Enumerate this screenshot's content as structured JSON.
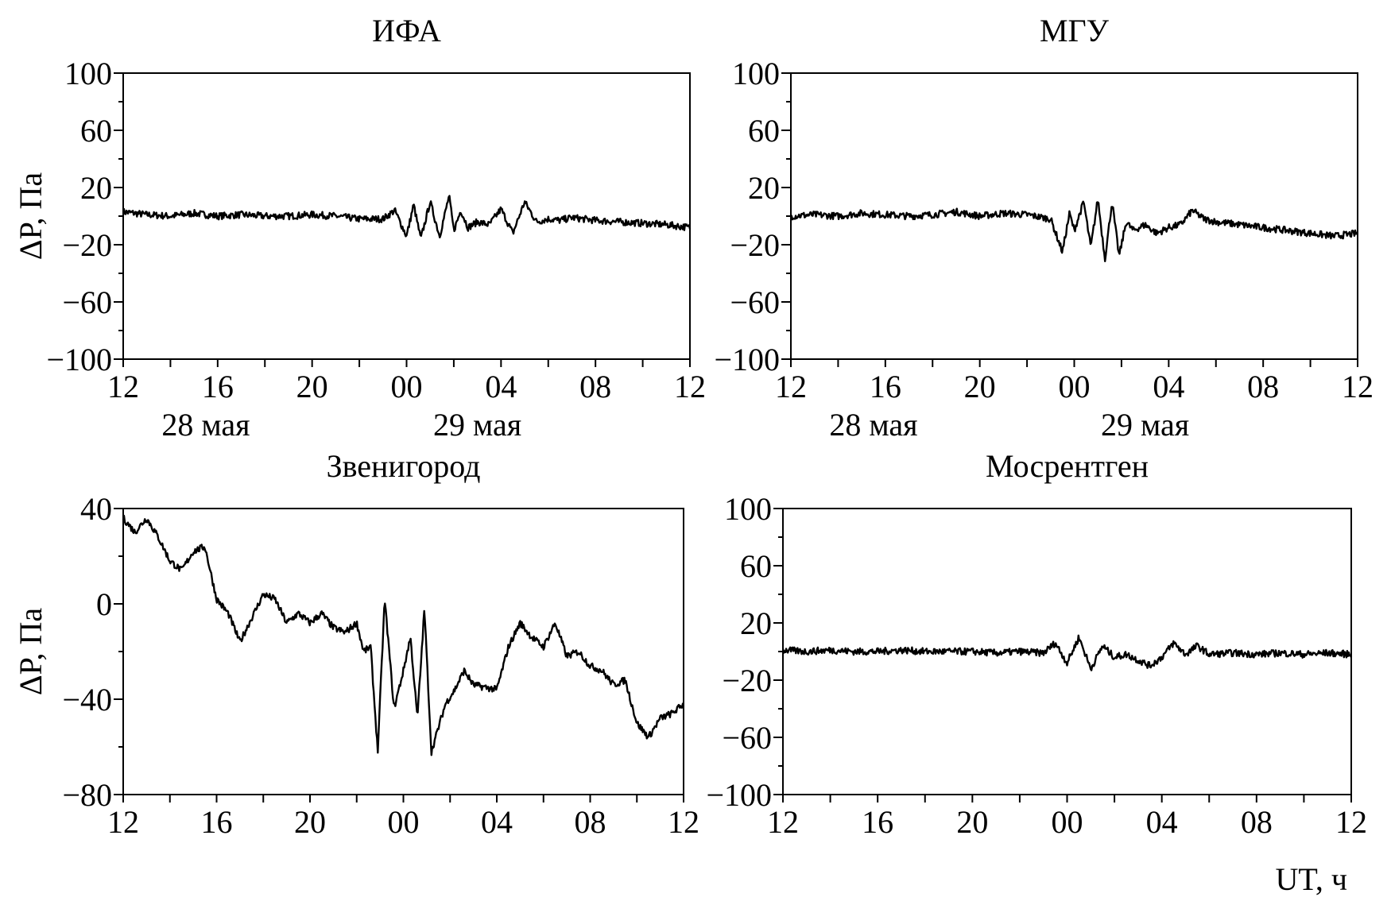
{
  "chart_data": [
    {
      "type": "line",
      "title": "ИФА",
      "ylabel": "ΔP, Па",
      "ylim": [
        -100,
        100
      ],
      "yticks": [
        "100",
        "60",
        "20",
        "−20",
        "−60",
        "−100"
      ],
      "xticks": [
        "12",
        "16",
        "20",
        "00",
        "04",
        "08",
        "12"
      ],
      "date_labels": [
        {
          "text": "28 мая",
          "at_hour": 15.5
        },
        {
          "text": "29 мая",
          "at_hour": 27
        }
      ],
      "xlim_hours": [
        0,
        24
      ],
      "series": [
        {
          "x": [
            0,
            1,
            2,
            3,
            4,
            5,
            6,
            7,
            8,
            9,
            10,
            11,
            11.5,
            12,
            12.3,
            12.6,
            13,
            13.4,
            13.8,
            14,
            14.3,
            14.6,
            15,
            15.5,
            16,
            16.5,
            17,
            17.5,
            18,
            18.5,
            19,
            19.5,
            20,
            21,
            22,
            23,
            24
          ],
          "y": [
            3,
            1,
            0,
            2,
            0,
            1,
            0,
            0,
            1,
            0,
            -2,
            -2,
            4,
            -14,
            8,
            -16,
            10,
            -14,
            14,
            -10,
            4,
            -8,
            -4,
            -6,
            5,
            -12,
            10,
            -4,
            -2,
            -3,
            -1,
            -2,
            -3,
            -4,
            -5,
            -6,
            -8
          ]
        }
      ]
    },
    {
      "type": "line",
      "title": "МГУ",
      "ylabel": "",
      "ylim": [
        -100,
        100
      ],
      "yticks": [
        "100",
        "60",
        "20",
        "−20",
        "−60",
        "−100"
      ],
      "xticks": [
        "12",
        "16",
        "20",
        "00",
        "04",
        "08",
        "12"
      ],
      "date_labels": [
        {
          "text": "28 мая",
          "at_hour": 15.5
        },
        {
          "text": "29 мая",
          "at_hour": 27
        }
      ],
      "xlim_hours": [
        0,
        24
      ],
      "series": [
        {
          "x": [
            0,
            1,
            2,
            3,
            4,
            5,
            6,
            7,
            8,
            9,
            10,
            11,
            11.5,
            11.8,
            12,
            12.4,
            12.7,
            13,
            13.3,
            13.6,
            13.9,
            14.2,
            14.5,
            15,
            15.5,
            16,
            16.5,
            17,
            17.5,
            18,
            19,
            20,
            21,
            22,
            23,
            24
          ],
          "y": [
            0,
            1,
            0,
            2,
            1,
            0,
            1,
            3,
            0,
            2,
            1,
            -2,
            -25,
            2,
            -10,
            10,
            -22,
            12,
            -30,
            10,
            -28,
            -4,
            -10,
            -6,
            -12,
            -8,
            -6,
            4,
            -2,
            -4,
            -6,
            -8,
            -10,
            -12,
            -14,
            -12
          ]
        }
      ]
    },
    {
      "type": "line",
      "title": "Звенигород",
      "ylabel": "ΔP, Па",
      "ylim": [
        -80,
        40
      ],
      "yticks": [
        "40",
        "0",
        "−40",
        "−80"
      ],
      "xticks": [
        "12",
        "16",
        "20",
        "00",
        "04",
        "08",
        "12"
      ],
      "xlim_hours": [
        0,
        24
      ],
      "series": [
        {
          "x": [
            0,
            0.5,
            1,
            1.5,
            2,
            2.5,
            3,
            3.5,
            4,
            4.5,
            5,
            5.5,
            6,
            6.5,
            7,
            7.5,
            8,
            8.5,
            9,
            9.5,
            10,
            10.3,
            10.6,
            10.9,
            11.2,
            11.6,
            12,
            12.3,
            12.6,
            12.9,
            13.2,
            13.5,
            13.8,
            14.2,
            14.6,
            15,
            15.5,
            16,
            16.5,
            17,
            17.5,
            18,
            18.5,
            19,
            19.5,
            20,
            20.5,
            21,
            21.5,
            22,
            22.5,
            23,
            23.5,
            24
          ],
          "y": [
            36,
            30,
            36,
            28,
            18,
            14,
            22,
            24,
            2,
            -4,
            -16,
            -6,
            4,
            2,
            -8,
            -4,
            -8,
            -4,
            -10,
            -12,
            -8,
            -20,
            -18,
            -62,
            2,
            -44,
            -28,
            -14,
            -48,
            -2,
            -62,
            -52,
            -42,
            -36,
            -28,
            -34,
            -35,
            -36,
            -18,
            -8,
            -14,
            -18,
            -8,
            -22,
            -20,
            -26,
            -28,
            -34,
            -32,
            -50,
            -56,
            -48,
            -46,
            -42
          ]
        }
      ]
    },
    {
      "type": "line",
      "title": "Мосрентген",
      "ylabel": "",
      "ylim": [
        -100,
        100
      ],
      "yticks": [
        "100",
        "60",
        "20",
        "−20",
        "−60",
        "−100"
      ],
      "xticks": [
        "12",
        "16",
        "20",
        "00",
        "04",
        "08",
        "12"
      ],
      "xlim_hours": [
        0,
        24
      ],
      "series": [
        {
          "x": [
            0,
            1,
            2,
            3,
            4,
            5,
            6,
            7,
            8,
            9,
            10,
            11,
            11.5,
            12,
            12.5,
            13,
            13.5,
            14,
            14.5,
            15,
            15.5,
            16,
            16.5,
            17,
            17.5,
            18,
            19,
            20,
            21,
            22,
            23,
            24
          ],
          "y": [
            1,
            0,
            1,
            0,
            0,
            1,
            0,
            0,
            0,
            -1,
            0,
            -1,
            6,
            -8,
            10,
            -12,
            4,
            -4,
            -2,
            -6,
            -10,
            -4,
            6,
            -2,
            4,
            -2,
            -1,
            -2,
            -1,
            -2,
            -1,
            -2
          ]
        }
      ]
    }
  ],
  "xunit_label": "UT, ч"
}
